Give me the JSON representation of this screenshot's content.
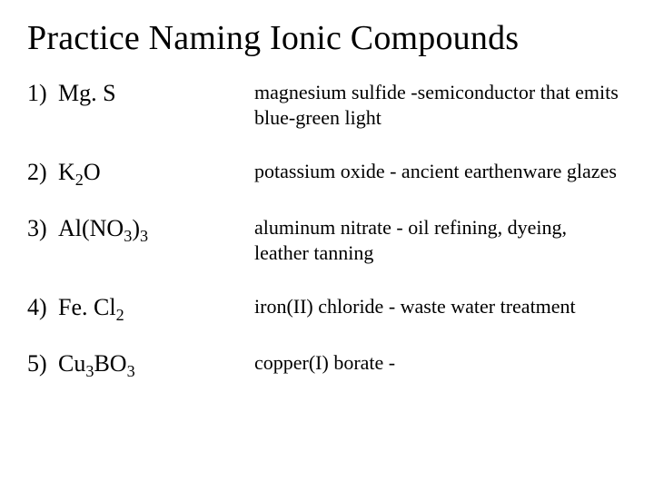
{
  "title": "Practice Naming Ionic Compounds",
  "title_fontsize": 38,
  "left_fontsize": 26,
  "right_fontsize": 22,
  "text_color": "#000000",
  "background_color": "#ffffff",
  "font_family": "Times New Roman",
  "layout": {
    "slide_width": 720,
    "slide_height": 540,
    "left_col_width": 250,
    "row_gap": 32
  },
  "rows": [
    {
      "number": "1)",
      "formula_text": "Mg. S",
      "formula_parts": [
        {
          "t": "Mg. S",
          "sub": false
        }
      ],
      "description": "magnesium sulfide -semiconductor that emits blue-green light"
    },
    {
      "number": "2)",
      "formula_text": "K2O",
      "formula_parts": [
        {
          "t": "K",
          "sub": false
        },
        {
          "t": "2",
          "sub": true
        },
        {
          "t": "O",
          "sub": false
        }
      ],
      "description": "potassium oxide - ancient earthenware glazes"
    },
    {
      "number": "3)",
      "formula_text": "Al(NO3)3",
      "formula_parts": [
        {
          "t": " Al(NO",
          "sub": false
        },
        {
          "t": "3",
          "sub": true
        },
        {
          "t": ")",
          "sub": false
        },
        {
          "t": "3",
          "sub": true
        }
      ],
      "description": "aluminum nitrate - oil refining, dyeing, leather tanning"
    },
    {
      "number": "4)",
      "formula_text": "Fe. Cl2",
      "formula_parts": [
        {
          "t": "Fe. Cl",
          "sub": false
        },
        {
          "t": "2",
          "sub": true
        }
      ],
      "description": "iron(II) chloride - waste water treatment"
    },
    {
      "number": "5)",
      "formula_text": "Cu3BO3",
      "formula_parts": [
        {
          "t": "Cu",
          "sub": false
        },
        {
          "t": "3",
          "sub": true
        },
        {
          "t": "BO",
          "sub": false
        },
        {
          "t": "3",
          "sub": true
        }
      ],
      "description": "copper(I) borate -"
    }
  ]
}
